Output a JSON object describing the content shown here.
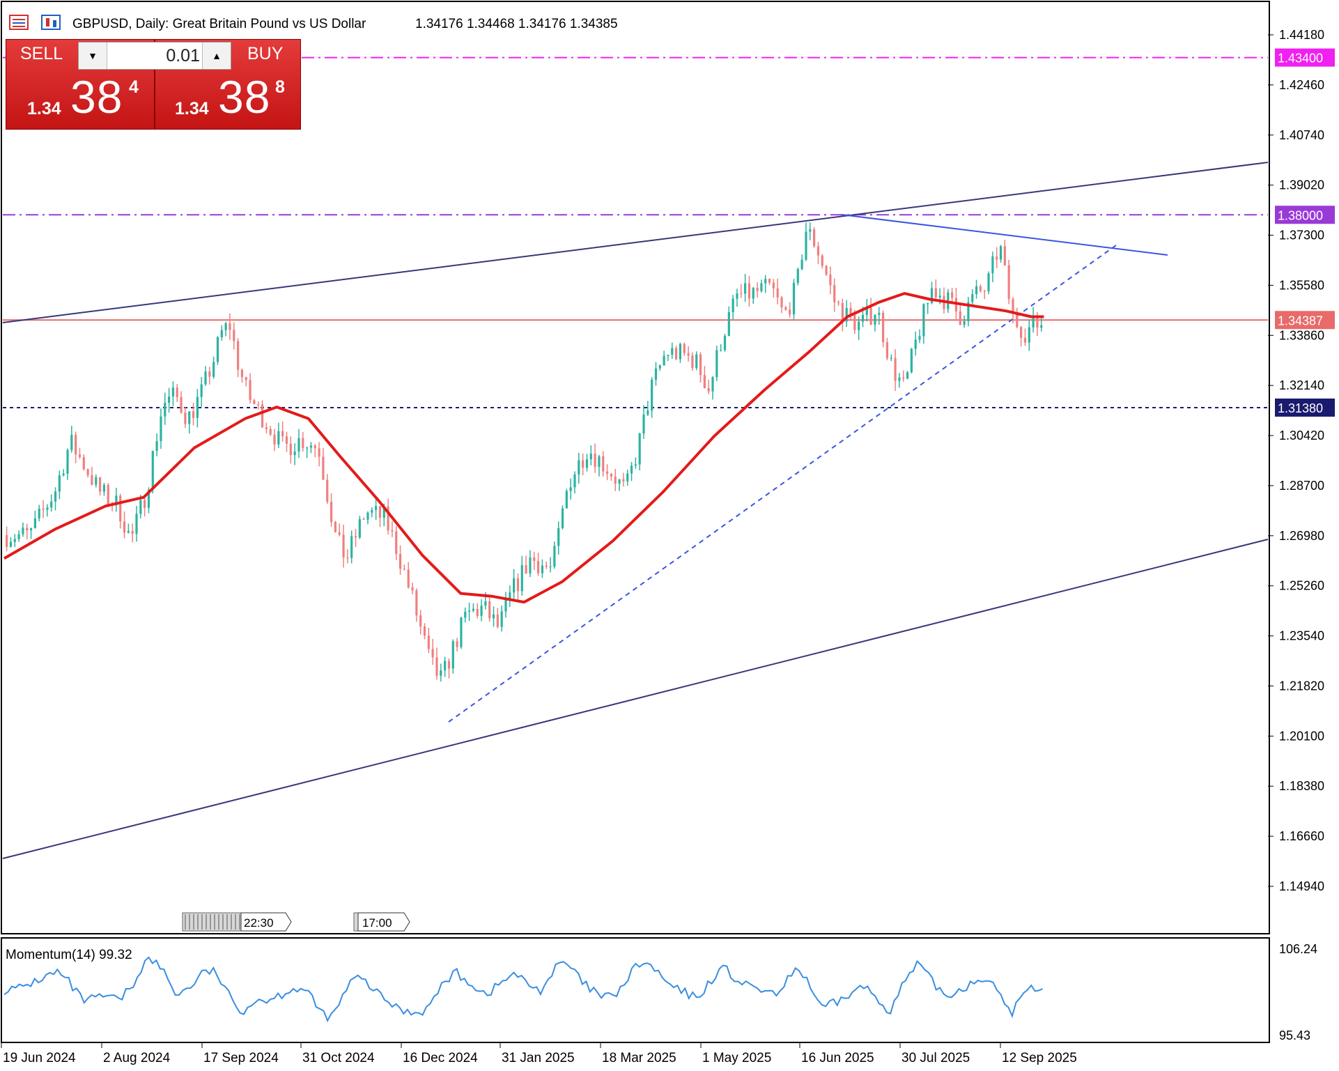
{
  "header": {
    "symbol_title": "GBPUSD, Daily:  Great Britain Pound vs US Dollar",
    "ohlc": "1.34176 1.34468 1.34176 1.34385"
  },
  "trade_panel": {
    "sell_label": "SELL",
    "buy_label": "BUY",
    "lot_value": "0.01",
    "sell_price": {
      "small": "1.34",
      "big": "38",
      "sup": "4"
    },
    "buy_price": {
      "small": "1.34",
      "big": "38",
      "sup": "8"
    }
  },
  "colors": {
    "bull_candle": "#2bb3a1",
    "bear_candle": "#f07f7f",
    "moving_average": "#e41a1a",
    "channel_lines": "#37377a",
    "trendline_dashed": "#3a55e0",
    "resistance_line": "#3a55e0",
    "level_magenta": "#f020f0",
    "level_purple": "#9a3ad6",
    "level_navy": "#1a1a6e",
    "current_price_line": "#e86a6a",
    "momentum_line": "#3a8de0"
  },
  "price_axis": {
    "ticks": [
      "1.44180",
      "1.42460",
      "1.40740",
      "1.39020",
      "1.37300",
      "1.35580",
      "1.33860",
      "1.32140",
      "1.30420",
      "1.28700",
      "1.26980",
      "1.25260",
      "1.23540",
      "1.21820",
      "1.20100",
      "1.18380",
      "1.16660",
      "1.14940"
    ]
  },
  "levels": [
    {
      "value": "1.43400",
      "color": "#f020f0",
      "style": "dash-dot"
    },
    {
      "value": "1.38000",
      "color": "#9a3ad6",
      "style": "dash-dot"
    },
    {
      "value": "1.34387",
      "color": "#e86a6a",
      "style": "solid"
    },
    {
      "value": "1.31380",
      "color": "#1a1a6e",
      "style": "dotted"
    }
  ],
  "time_axis": {
    "labels": [
      "19 Jun 2024",
      "2 Aug 2024",
      "17 Sep 2024",
      "31 Oct 2024",
      "16 Dec 2024",
      "31 Jan 2025",
      "18 Mar 2025",
      "1 May 2025",
      "16 Jun 2025",
      "30 Jul 2025",
      "12 Sep 2025"
    ]
  },
  "session_markers": [
    "22:30",
    "17:00"
  ],
  "momentum": {
    "label": "Momentum(14) 99.32",
    "axis_ticks": [
      "106.24",
      "95.43"
    ]
  },
  "chart_data": {
    "type": "candlestick",
    "title": "GBPUSD, Daily:  Great Britain Pound vs US Dollar",
    "ylim": [
      1.14,
      1.45
    ],
    "close_path": [
      [
        0,
        1.27
      ],
      [
        20,
        1.27
      ],
      [
        40,
        1.285
      ],
      [
        52,
        1.302
      ],
      [
        62,
        1.295
      ],
      [
        75,
        1.285
      ],
      [
        90,
        1.28
      ],
      [
        100,
        1.268
      ],
      [
        112,
        1.285
      ],
      [
        125,
        1.315
      ],
      [
        135,
        1.318
      ],
      [
        145,
        1.31
      ],
      [
        155,
        1.318
      ],
      [
        165,
        1.33
      ],
      [
        172,
        1.34
      ],
      [
        178,
        1.342
      ],
      [
        185,
        1.328
      ],
      [
        192,
        1.318
      ],
      [
        205,
        1.31
      ],
      [
        220,
        1.3
      ],
      [
        235,
        1.303
      ],
      [
        248,
        1.3
      ],
      [
        262,
        1.268
      ],
      [
        270,
        1.262
      ],
      [
        285,
        1.278
      ],
      [
        300,
        1.276
      ],
      [
        310,
        1.265
      ],
      [
        322,
        1.248
      ],
      [
        336,
        1.226
      ],
      [
        345,
        1.22
      ],
      [
        353,
        1.23
      ],
      [
        365,
        1.243
      ],
      [
        378,
        1.245
      ],
      [
        390,
        1.238
      ],
      [
        400,
        1.25
      ],
      [
        415,
        1.262
      ],
      [
        432,
        1.258
      ],
      [
        445,
        1.288
      ],
      [
        460,
        1.3
      ],
      [
        478,
        1.292
      ],
      [
        490,
        1.285
      ],
      [
        500,
        1.3
      ],
      [
        510,
        1.32
      ],
      [
        522,
        1.333
      ],
      [
        535,
        1.332
      ],
      [
        545,
        1.33
      ],
      [
        556,
        1.32
      ],
      [
        566,
        1.338
      ],
      [
        578,
        1.352
      ],
      [
        590,
        1.353
      ],
      [
        605,
        1.355
      ],
      [
        615,
        1.345
      ],
      [
        625,
        1.355
      ],
      [
        632,
        1.375
      ],
      [
        640,
        1.37
      ],
      [
        648,
        1.36
      ],
      [
        655,
        1.35
      ],
      [
        665,
        1.345
      ],
      [
        675,
        1.342
      ],
      [
        688,
        1.348
      ],
      [
        700,
        1.328
      ],
      [
        710,
        1.32
      ],
      [
        720,
        1.338
      ],
      [
        732,
        1.355
      ],
      [
        745,
        1.35
      ],
      [
        755,
        1.345
      ],
      [
        765,
        1.352
      ],
      [
        775,
        1.355
      ],
      [
        785,
        1.37
      ],
      [
        795,
        1.345
      ],
      [
        805,
        1.34
      ],
      [
        812,
        1.342
      ],
      [
        820,
        1.343
      ]
    ],
    "ma_path": [
      [
        0,
        1.262
      ],
      [
        40,
        1.272
      ],
      [
        80,
        1.28
      ],
      [
        110,
        1.283
      ],
      [
        150,
        1.3
      ],
      [
        190,
        1.31
      ],
      [
        215,
        1.314
      ],
      [
        240,
        1.31
      ],
      [
        265,
        1.297
      ],
      [
        295,
        1.282
      ],
      [
        330,
        1.263
      ],
      [
        360,
        1.25
      ],
      [
        385,
        1.249
      ],
      [
        410,
        1.247
      ],
      [
        440,
        1.254
      ],
      [
        480,
        1.268
      ],
      [
        520,
        1.285
      ],
      [
        560,
        1.304
      ],
      [
        600,
        1.32
      ],
      [
        635,
        1.333
      ],
      [
        665,
        1.345
      ],
      [
        690,
        1.35
      ],
      [
        710,
        1.353
      ],
      [
        730,
        1.351
      ],
      [
        760,
        1.349
      ],
      [
        790,
        1.347
      ],
      [
        810,
        1.345
      ],
      [
        820,
        1.345
      ]
    ],
    "series": [
      {
        "name": "Momentum(14) 99.32",
        "axis_ticks": [
          106.24,
          95.43
        ],
        "last": 99.32
      }
    ]
  }
}
